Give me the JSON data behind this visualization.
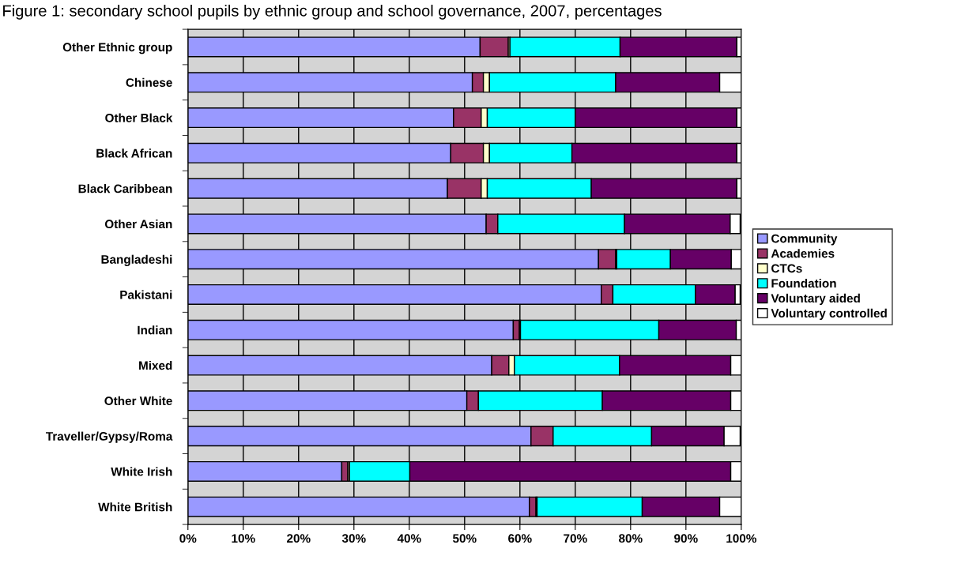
{
  "chart_data": {
    "type": "bar",
    "orientation": "horizontal",
    "stacked": true,
    "title": "Figure 1: secondary school pupils by ethnic group and school governance, 2007, percentages",
    "categories": [
      "Other Ethnic group",
      "Chinese",
      "Other Black",
      "Black African",
      "Black Caribbean",
      "Other Asian",
      "Bangladeshi",
      "Pakistani",
      "Indian",
      "Mixed",
      "Other White",
      "Traveller/Gypsy/Roma",
      "White Irish",
      "White British"
    ],
    "series": [
      {
        "name": "Community",
        "color": "#9999ff",
        "values": [
          52.8,
          51.4,
          48.0,
          47.5,
          46.9,
          53.9,
          74.2,
          74.7,
          58.8,
          54.9,
          50.4,
          62.0,
          27.8,
          61.7
        ]
      },
      {
        "name": "Academies",
        "color": "#993366",
        "values": [
          5.1,
          2.0,
          5.0,
          5.9,
          6.1,
          2.1,
          3.1,
          2.1,
          1.1,
          3.1,
          2.1,
          4.0,
          1.1,
          1.2
        ]
      },
      {
        "name": "CTCs",
        "color": "#ffffcc",
        "values": [
          0.3,
          1.1,
          1.1,
          1.1,
          1.1,
          null,
          0.2,
          null,
          0.2,
          1.0,
          null,
          null,
          0.3,
          0.2
        ]
      },
      {
        "name": "Foundation",
        "color": "#00ffff",
        "values": [
          19.9,
          22.8,
          15.9,
          14.9,
          18.8,
          22.9,
          9.7,
          14.9,
          25.0,
          19.0,
          22.4,
          17.8,
          10.9,
          19.0
        ]
      },
      {
        "name": "Voluntary aided",
        "color": "#660066",
        "values": [
          21.1,
          18.8,
          29.2,
          29.8,
          26.3,
          19.1,
          11.0,
          7.2,
          14.0,
          20.1,
          23.2,
          13.1,
          58.0,
          14.0
        ]
      },
      {
        "name": "Voluntary controlled",
        "color": "#ffffff",
        "values": [
          0.8,
          3.9,
          0.8,
          0.8,
          0.8,
          1.8,
          1.8,
          0.9,
          0.9,
          1.9,
          1.9,
          2.9,
          1.9,
          3.9
        ]
      }
    ],
    "xlim": [
      0,
      100
    ],
    "xticks": [
      {
        "value": 0,
        "label": "0%"
      },
      {
        "value": 10,
        "label": "10%"
      },
      {
        "value": 20,
        "label": "20%"
      },
      {
        "value": 30,
        "label": "30%"
      },
      {
        "value": 40,
        "label": "40%"
      },
      {
        "value": 50,
        "label": "50%"
      },
      {
        "value": 60,
        "label": "60%"
      },
      {
        "value": 70,
        "label": "70%"
      },
      {
        "value": 80,
        "label": "80%"
      },
      {
        "value": 90,
        "label": "90%"
      },
      {
        "value": 100,
        "label": "100%"
      }
    ],
    "grid": "x",
    "legend": "right"
  }
}
